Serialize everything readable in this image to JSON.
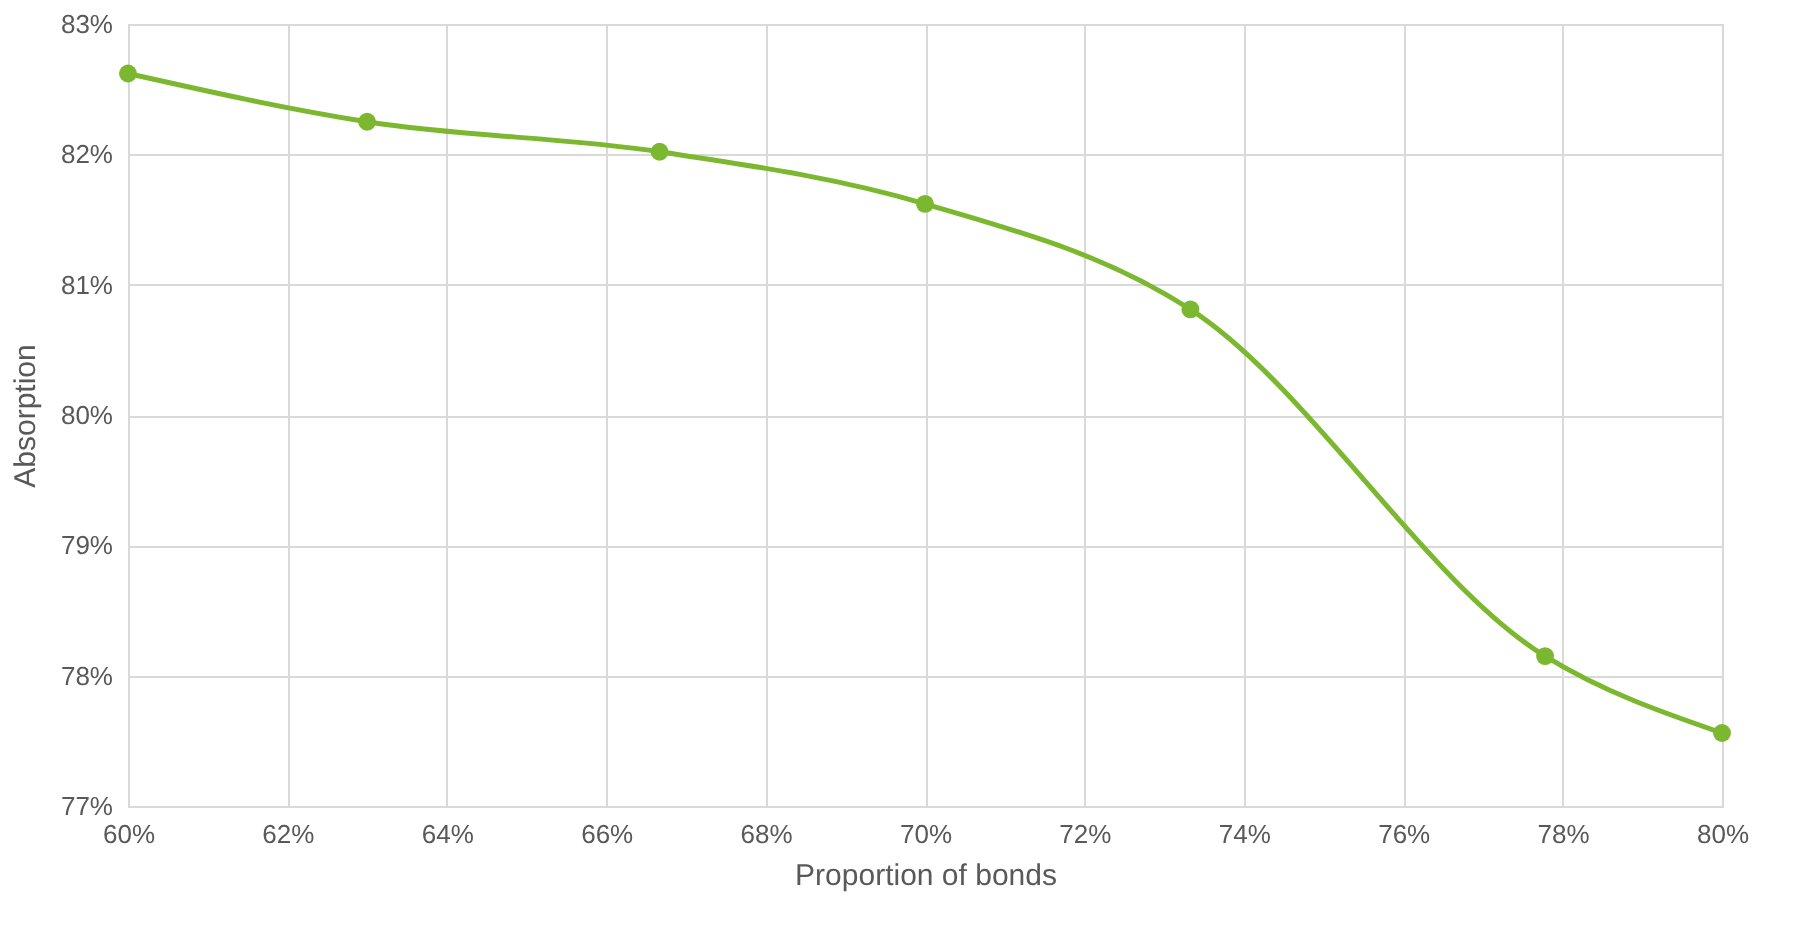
{
  "chart_data": {
    "type": "line",
    "xlabel": "Proportion of bonds",
    "ylabel": "Absorption",
    "x": [
      60,
      63,
      66.67,
      70,
      73.33,
      77.78,
      80
    ],
    "series": [
      {
        "color": "#7cb82f",
        "values": [
          82.62,
          82.25,
          82.02,
          81.62,
          80.81,
          78.15,
          77.56
        ]
      }
    ],
    "xlim": [
      60,
      80
    ],
    "xticks": [
      {
        "value": 60,
        "label": "60%"
      },
      {
        "value": 62,
        "label": "62%"
      },
      {
        "value": 64,
        "label": "64%"
      },
      {
        "value": 66,
        "label": "66%"
      },
      {
        "value": 68,
        "label": "68%"
      },
      {
        "value": 70,
        "label": "70%"
      },
      {
        "value": 72,
        "label": "72%"
      },
      {
        "value": 74,
        "label": "74%"
      },
      {
        "value": 76,
        "label": "76%"
      },
      {
        "value": 78,
        "label": "78%"
      },
      {
        "value": 80,
        "label": "80%"
      }
    ],
    "ylim": [
      77,
      83
    ],
    "yticks": [
      {
        "value": 77,
        "label": "77%"
      },
      {
        "value": 78,
        "label": "78%"
      },
      {
        "value": 79,
        "label": "79%"
      },
      {
        "value": 80,
        "label": "80%"
      },
      {
        "value": 81,
        "label": "81%"
      },
      {
        "value": 82,
        "label": "82%"
      },
      {
        "value": 83,
        "label": "83%"
      }
    ],
    "grid": true,
    "marker": "circle",
    "line_style": "solid"
  }
}
